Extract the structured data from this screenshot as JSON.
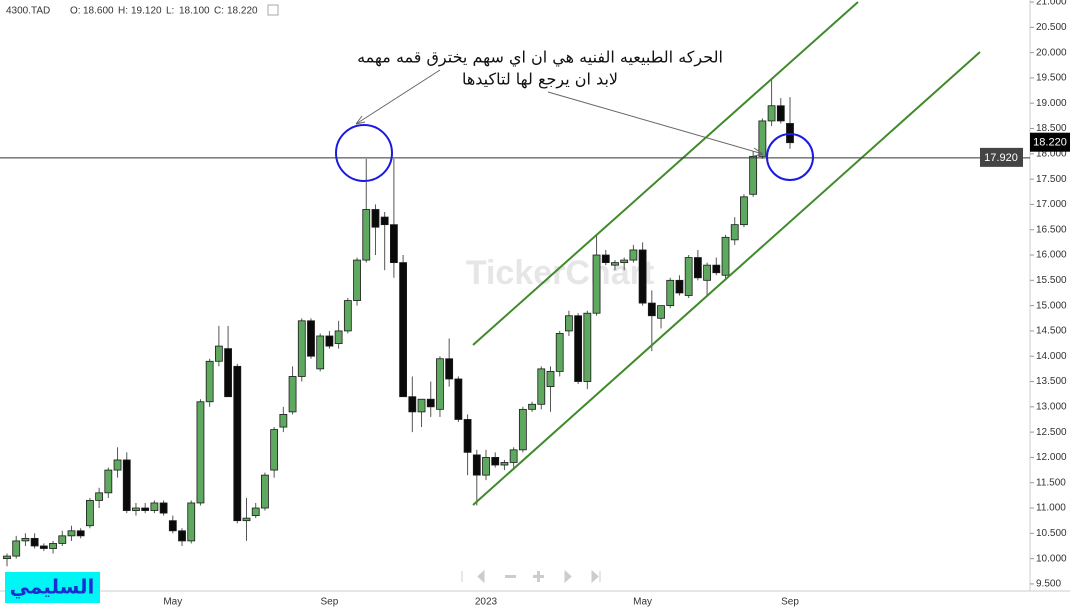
{
  "chart_data": {
    "type": "candlestick",
    "symbol": "4300.TAD",
    "ohlc_header": [
      {
        "name": "O:",
        "value": "18.600"
      },
      {
        "name": "H:",
        "value": "19.120"
      },
      {
        "name": "L:",
        "value": "18.100"
      },
      {
        "name": "C:",
        "value": "18.220"
      }
    ],
    "annotation": [
      "الحركه الطبيعيه الفنيه هي ان اي سهم يخترق قمه مهمه",
      "لابد ان يرجع لها لتاكيدها"
    ],
    "watermark": "TickerChart",
    "signature": "السليمي",
    "categories": [
      null,
      null,
      null,
      null,
      null,
      null,
      null,
      null,
      null,
      null,
      null,
      null,
      null,
      null,
      null,
      null,
      null,
      null,
      "May",
      null,
      null,
      null,
      null,
      null,
      null,
      null,
      null,
      null,
      null,
      null,
      null,
      null,
      null,
      null,
      null,
      "Sep",
      null,
      null,
      null,
      null,
      null,
      null,
      null,
      null,
      null,
      null,
      null,
      null,
      null,
      null,
      null,
      null,
      "2023",
      null,
      null,
      null,
      null,
      null,
      null,
      null,
      null,
      null,
      null,
      null,
      null,
      null,
      null,
      null,
      null,
      "May",
      null,
      null,
      null,
      null,
      null,
      null,
      null,
      null,
      null,
      null,
      null,
      null,
      null,
      null,
      null,
      "Sep"
    ],
    "open": [
      10.0,
      10.05,
      10.35,
      10.4,
      10.25,
      10.2,
      10.3,
      10.45,
      10.55,
      10.65,
      11.15,
      11.3,
      11.75,
      11.95,
      10.95,
      11.0,
      10.95,
      11.1,
      10.75,
      10.55,
      10.35,
      11.1,
      13.1,
      13.9,
      14.15,
      13.8,
      10.75,
      10.85,
      11.0,
      11.75,
      12.6,
      12.9,
      13.6,
      14.7,
      13.75,
      14.4,
      14.25,
      14.5,
      15.1,
      15.9,
      16.9,
      16.75,
      16.6,
      15.85,
      13.2,
      12.9,
      13.15,
      12.95,
      13.95,
      13.55,
      12.75,
      12.05,
      11.65,
      12.0,
      11.85,
      11.9,
      12.15,
      12.95,
      13.05,
      13.4,
      13.7,
      14.5,
      14.8,
      13.5,
      14.85,
      16.0,
      15.8,
      15.85,
      15.9,
      16.1,
      15.05,
      14.75,
      15.0,
      15.5,
      15.2,
      15.95,
      15.5,
      15.8,
      15.6,
      16.3,
      16.6,
      17.2,
      17.95,
      18.65,
      18.95,
      18.6
    ],
    "high": [
      10.1,
      10.45,
      10.5,
      10.5,
      10.3,
      10.35,
      10.55,
      10.65,
      10.6,
      11.2,
      11.4,
      11.8,
      12.2,
      12.1,
      11.1,
      11.1,
      11.15,
      11.15,
      10.85,
      10.6,
      11.15,
      13.15,
      13.95,
      14.6,
      14.6,
      13.85,
      11.2,
      11.1,
      11.7,
      12.6,
      13.0,
      13.8,
      14.75,
      14.75,
      14.45,
      14.5,
      14.7,
      15.15,
      15.95,
      17.9,
      17.0,
      16.85,
      17.9,
      16.0,
      13.6,
      13.15,
      13.5,
      14.0,
      14.35,
      13.6,
      12.85,
      12.15,
      12.15,
      12.1,
      11.95,
      12.2,
      13.0,
      13.1,
      13.8,
      13.8,
      14.5,
      14.9,
      14.85,
      14.9,
      16.4,
      16.1,
      15.9,
      15.95,
      16.2,
      16.25,
      15.3,
      15.0,
      15.55,
      15.6,
      16.0,
      16.1,
      15.85,
      15.95,
      16.4,
      16.75,
      17.2,
      18.05,
      18.7,
      19.5,
      19.1,
      19.12
    ],
    "low": [
      9.85,
      10.0,
      10.25,
      10.2,
      10.15,
      10.1,
      10.25,
      10.35,
      10.4,
      10.6,
      11.0,
      11.2,
      11.6,
      10.9,
      10.85,
      10.9,
      10.9,
      10.85,
      10.5,
      10.25,
      10.3,
      11.05,
      13.0,
      13.8,
      13.2,
      10.7,
      10.35,
      10.8,
      10.95,
      11.6,
      12.5,
      12.85,
      13.5,
      13.95,
      13.7,
      14.15,
      14.15,
      14.45,
      15.0,
      15.85,
      16.0,
      15.7,
      15.55,
      13.2,
      12.5,
      12.6,
      12.8,
      12.8,
      13.4,
      12.7,
      11.65,
      11.05,
      11.55,
      11.8,
      11.75,
      11.75,
      12.1,
      12.9,
      12.95,
      12.9,
      13.6,
      14.4,
      13.45,
      13.35,
      14.8,
      15.8,
      15.7,
      15.7,
      15.85,
      15.0,
      14.1,
      14.55,
      14.95,
      15.2,
      15.15,
      15.5,
      15.2,
      15.6,
      15.5,
      16.2,
      16.55,
      17.15,
      17.9,
      18.55,
      18.6,
      18.1
    ],
    "close": [
      10.05,
      10.35,
      10.4,
      10.25,
      10.2,
      10.3,
      10.45,
      10.55,
      10.45,
      11.15,
      11.3,
      11.75,
      11.95,
      10.95,
      11.0,
      10.95,
      11.1,
      10.9,
      10.55,
      10.35,
      11.1,
      13.1,
      13.9,
      14.2,
      13.2,
      10.75,
      10.8,
      11.0,
      11.65,
      12.55,
      12.85,
      13.6,
      14.7,
      14.0,
      14.4,
      14.2,
      14.5,
      15.1,
      15.9,
      16.9,
      16.55,
      16.6,
      15.85,
      13.2,
      12.9,
      13.15,
      13.0,
      13.95,
      13.55,
      12.75,
      12.1,
      11.65,
      12.0,
      11.85,
      11.9,
      12.15,
      12.95,
      13.05,
      13.75,
      13.7,
      14.45,
      14.8,
      13.5,
      14.85,
      16.0,
      15.85,
      15.85,
      15.9,
      16.1,
      15.05,
      14.8,
      15.0,
      15.5,
      15.25,
      15.95,
      15.55,
      15.8,
      15.65,
      16.35,
      16.6,
      17.15,
      17.95,
      18.65,
      18.95,
      18.65,
      18.22
    ],
    "up_color": "#5fa85f",
    "down_color": "#0a0a0a",
    "ylim": [
      9.36,
      21.04
    ],
    "yticks": [
      {
        "value": 9.5,
        "label": "9.500"
      },
      {
        "value": 10,
        "label": "10.000"
      },
      {
        "value": 10.5,
        "label": "10.500"
      },
      {
        "value": 11,
        "label": "11.000"
      },
      {
        "value": 11.5,
        "label": "11.500"
      },
      {
        "value": 12,
        "label": "12.000"
      },
      {
        "value": 12.5,
        "label": "12.500"
      },
      {
        "value": 13,
        "label": "13.000"
      },
      {
        "value": 13.5,
        "label": "13.500"
      },
      {
        "value": 14,
        "label": "14.000"
      },
      {
        "value": 14.5,
        "label": "14.500"
      },
      {
        "value": 15,
        "label": "15.000"
      },
      {
        "value": 15.5,
        "label": "15.500"
      },
      {
        "value": 16,
        "label": "16.000"
      },
      {
        "value": 16.5,
        "label": "16.500"
      },
      {
        "value": 17,
        "label": "17.000"
      },
      {
        "value": 17.5,
        "label": "17.500"
      },
      {
        "value": 18,
        "label": "18.000"
      },
      {
        "value": 18.5,
        "label": "18.500"
      },
      {
        "value": 19,
        "label": "19.000"
      },
      {
        "value": 19.5,
        "label": "19.500"
      },
      {
        "value": 20,
        "label": "20.000"
      },
      {
        "value": 20.5,
        "label": "20.500"
      },
      {
        "value": 21,
        "label": "21.000"
      }
    ],
    "hline": {
      "value": 17.92,
      "label": "17.920",
      "color": "#444444"
    },
    "last_price": {
      "value": 18.22,
      "label": "18.220",
      "color": "#000000"
    }
  }
}
